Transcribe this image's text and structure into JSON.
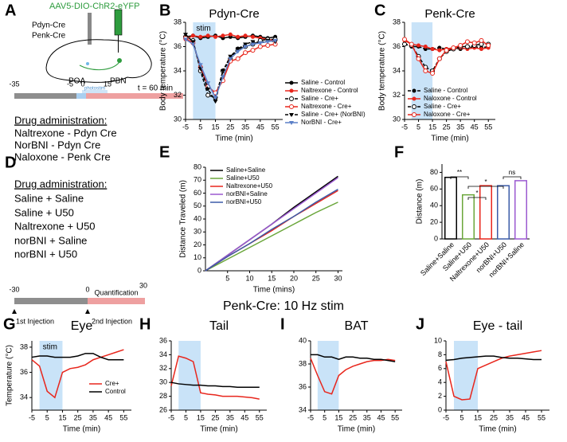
{
  "figure": {
    "panels": [
      "A",
      "B",
      "C",
      "D",
      "E",
      "F",
      "G",
      "H",
      "I",
      "J"
    ],
    "section_title": "Penk-Cre: 10 Hz stim",
    "diagram_a": {
      "virus": "AAV5-DIO-ChR2-eYFP",
      "lines": [
        "Pdyn-Cre",
        "Penk-Cre"
      ],
      "regions": [
        "POA",
        "PBN"
      ],
      "timeline": [
        "-35",
        "-5",
        "0",
        "15",
        "t = 60 min"
      ],
      "photostim": "photostim",
      "drug_title": "Drug administration:",
      "drugs": [
        "Naltrexone - Pdyn Cre",
        "NorBNI - Pdyn Cre",
        "Naloxone - Penk Cre"
      ]
    },
    "diagram_d": {
      "drug_title": "Drug administration:",
      "drugs": [
        "Saline + Saline",
        "Saline + U50",
        "Naltrexone + U50",
        "norBNI + Saline",
        "norBNI + U50"
      ],
      "timeline": [
        "-30",
        "0",
        "30"
      ],
      "phase": "Quantification",
      "injections": [
        "1st Injection",
        "2nd Injection"
      ]
    }
  },
  "chart_data": [
    {
      "type": "line",
      "title": "Pdyn-Cre",
      "x_label": "Time (min)",
      "y_label": "Body temperature (°C)",
      "x": [
        -5,
        0,
        5,
        10,
        15,
        20,
        25,
        30,
        35,
        40,
        45,
        50,
        55
      ],
      "xlim": [
        -5,
        60
      ],
      "xticks": [
        -5,
        5,
        15,
        25,
        35,
        45,
        55
      ],
      "ylim": [
        30,
        38
      ],
      "yticks": [
        30,
        32,
        34,
        36,
        38
      ],
      "shaded_region": [
        0,
        15
      ],
      "shaded_label": "stim",
      "legend": "lower right",
      "series": [
        {
          "name": "Saline - Control",
          "color": "#000000",
          "marker": "filled",
          "dashed": false,
          "values": [
            36.8,
            36.9,
            36.7,
            36.8,
            36.9,
            36.7,
            36.8,
            36.7,
            36.8,
            36.9,
            36.8,
            36.7,
            36.8
          ]
        },
        {
          "name": "Naltrexone - Control",
          "color": "#e8261c",
          "marker": "filled",
          "dashed": false,
          "values": [
            36.6,
            36.9,
            36.8,
            36.9,
            36.8,
            36.9,
            37,
            36.8,
            36.9,
            36.8,
            36.7,
            36.6,
            36.5
          ]
        },
        {
          "name": "Saline - Cre+",
          "color": "#000000",
          "marker": "open",
          "dashed": true,
          "values": [
            36.8,
            36.5,
            34,
            32,
            31.8,
            34,
            35,
            35.8,
            36,
            36.2,
            36.5,
            36.6,
            36.6
          ]
        },
        {
          "name": "Naltrexone - Cre+",
          "color": "#e8261c",
          "marker": "open",
          "dashed": false,
          "values": [
            36.7,
            36.3,
            34.3,
            32.7,
            32.2,
            33.2,
            34.8,
            35,
            35.5,
            35.7,
            36,
            36.1,
            36.2
          ]
        },
        {
          "name": "Saline - Cre+ (NorBNI)",
          "color": "#000000",
          "marker": "triangle",
          "dashed": true,
          "values": [
            37,
            36.4,
            34.2,
            32.5,
            31.5,
            34,
            35.2,
            35.8,
            36.2,
            36.4,
            36.3,
            36.5,
            36.4
          ]
        },
        {
          "name": "NorBNI - Cre+",
          "color": "#5b7fc7",
          "marker": "triangle",
          "dashed": false,
          "values": [
            36.6,
            36.2,
            34.5,
            33,
            31.8,
            33.5,
            35,
            35.6,
            36,
            36.2,
            36.3,
            36.4,
            36.5
          ]
        }
      ]
    },
    {
      "type": "line",
      "title": "Penk-Cre",
      "x_label": "Time (min)",
      "y_label": "Body temperature (°C)",
      "x": [
        -5,
        0,
        5,
        10,
        15,
        20,
        25,
        30,
        35,
        40,
        45,
        50,
        55
      ],
      "xlim": [
        -5,
        60
      ],
      "xticks": [
        -5,
        5,
        15,
        25,
        35,
        45,
        55
      ],
      "ylim": [
        30,
        38
      ],
      "yticks": [
        30,
        32,
        34,
        36,
        38
      ],
      "shaded_region": [
        0,
        15
      ],
      "legend": "lower right",
      "series": [
        {
          "name": "Saline - Control",
          "color": "#000000",
          "marker": "filled",
          "dashed": true,
          "values": [
            36.2,
            36,
            36,
            35.8,
            35.8,
            35.9,
            35.8,
            35.9,
            35.8,
            35.9,
            36,
            35.9,
            36
          ]
        },
        {
          "name": "Naloxone - Control",
          "color": "#e8261c",
          "marker": "filled",
          "dashed": false,
          "values": [
            36.5,
            36.2,
            36.1,
            36,
            35.8,
            35.7,
            35.8,
            35.9,
            35.9,
            35.8,
            35.9,
            35.8,
            35.9
          ]
        },
        {
          "name": "Saline - Cre+",
          "color": "#000000",
          "marker": "open",
          "dashed": true,
          "values": [
            36.2,
            36.1,
            35.2,
            34.3,
            34,
            35,
            35.6,
            35.8,
            36,
            36,
            36.1,
            36.2,
            36.2
          ]
        },
        {
          "name": "Naloxone - Cre+",
          "color": "#e8261c",
          "marker": "open",
          "dashed": false,
          "values": [
            36.6,
            36.2,
            35,
            34,
            33.8,
            35,
            35.7,
            35.9,
            36.1,
            36.4,
            36.3,
            36.5,
            36.1
          ]
        }
      ]
    },
    {
      "type": "line",
      "x_label": "Time (mins)",
      "y_label": "Distance Traveled (m)",
      "x": [
        0,
        5,
        10,
        15,
        20,
        25,
        30
      ],
      "xlim": [
        0,
        31
      ],
      "xticks": [
        5,
        10,
        15,
        20,
        25,
        30
      ],
      "ylim": [
        0,
        80
      ],
      "yticks": [
        0,
        10,
        20,
        30,
        40,
        50,
        60,
        70,
        80
      ],
      "legend": "upper left",
      "series": [
        {
          "name": "Saline+Saline",
          "color": "#000000",
          "marker": "none",
          "values": [
            0,
            12,
            24,
            36,
            49,
            61,
            73
          ]
        },
        {
          "name": "Saline+U50",
          "color": "#6aa63a",
          "marker": "none",
          "values": [
            0,
            9,
            18,
            27,
            36,
            45,
            53
          ]
        },
        {
          "name": "Naltrexone+U50",
          "color": "#e8261c",
          "marker": "none",
          "values": [
            0,
            11,
            21,
            31,
            42,
            52,
            62
          ]
        },
        {
          "name": "norBNI+Saline",
          "color": "#9b59d0",
          "marker": "none",
          "values": [
            0,
            12,
            24,
            36,
            48,
            60,
            72
          ]
        },
        {
          "name": "norBNI+U50",
          "color": "#3b5ba8",
          "marker": "none",
          "values": [
            0,
            11,
            21,
            32,
            42,
            53,
            63
          ]
        }
      ]
    },
    {
      "type": "bar",
      "y_label": "Distance (m)",
      "categories": [
        "Saline+Saline",
        "Saline+U50",
        "Naltrexone+U50",
        "norBNI+U50",
        "norBNI+Saline"
      ],
      "values": [
        74,
        53,
        64,
        64,
        70
      ],
      "colors": [
        "#000000",
        "#6aa63a",
        "#e8261c",
        "#3b5ba8",
        "#9b59d0"
      ],
      "ylim": [
        0,
        90
      ],
      "yticks": [
        0,
        20,
        40,
        60,
        80
      ],
      "annotations": [
        "**",
        "*",
        "*",
        "ns"
      ]
    },
    {
      "type": "line",
      "title": "Eye",
      "x_label": "Time (min)",
      "y_label": "Temperature (°C)",
      "x": [
        -5,
        0,
        5,
        10,
        15,
        20,
        25,
        30,
        35,
        40,
        45,
        50,
        55
      ],
      "xlim": [
        -5,
        60
      ],
      "xticks": [
        -5,
        5,
        15,
        25,
        35,
        45,
        55
      ],
      "ylim": [
        33,
        38.5
      ],
      "yticks": [
        34,
        36,
        38
      ],
      "shaded_region": [
        0,
        15
      ],
      "shaded_label": "stim",
      "legend": "lower right",
      "series": [
        {
          "name": "Cre+",
          "color": "#e8261c",
          "marker": "none",
          "values": [
            37,
            36.5,
            34.5,
            34,
            36,
            36.3,
            36.4,
            36.6,
            37,
            37.2,
            37.4,
            37.6,
            37.8
          ]
        },
        {
          "name": "Control",
          "color": "#000000",
          "marker": "none",
          "values": [
            37.2,
            37.3,
            37.3,
            37.2,
            37.2,
            37.2,
            37.3,
            37.5,
            37.5,
            37.2,
            37,
            37,
            37
          ]
        }
      ]
    },
    {
      "type": "line",
      "title": "Tail",
      "x_label": "Time (min)",
      "x": [
        -5,
        0,
        5,
        10,
        15,
        20,
        25,
        30,
        35,
        40,
        45,
        50,
        55
      ],
      "xlim": [
        -5,
        60
      ],
      "xticks": [
        -5,
        5,
        15,
        25,
        35,
        45,
        55
      ],
      "ylim": [
        26,
        36
      ],
      "yticks": [
        26,
        28,
        30,
        32,
        34,
        36
      ],
      "shaded_region": [
        0,
        15
      ],
      "series": [
        {
          "color": "#e8261c",
          "marker": "none",
          "values": [
            29.5,
            33.8,
            33.5,
            33,
            28.5,
            28.3,
            28.2,
            28,
            28,
            28,
            27.9,
            27.8,
            27.6
          ]
        },
        {
          "color": "#000000",
          "marker": "none",
          "values": [
            30,
            29.8,
            29.7,
            29.6,
            29.6,
            29.5,
            29.5,
            29.4,
            29.4,
            29.3,
            29.3,
            29.3,
            29.3
          ]
        }
      ]
    },
    {
      "type": "line",
      "title": "BAT",
      "x_label": "Time (min)",
      "x": [
        -5,
        0,
        5,
        10,
        15,
        20,
        25,
        30,
        35,
        40,
        45,
        50,
        55
      ],
      "xlim": [
        -5,
        60
      ],
      "xticks": [
        -5,
        5,
        15,
        25,
        35,
        45,
        55
      ],
      "ylim": [
        34,
        40
      ],
      "yticks": [
        34,
        36,
        38,
        40
      ],
      "shaded_region": [
        0,
        15
      ],
      "series": [
        {
          "color": "#e8261c",
          "marker": "none",
          "values": [
            38.5,
            37,
            35.6,
            35.4,
            37,
            37.5,
            37.8,
            38,
            38.2,
            38.3,
            38.3,
            38.4,
            38.3
          ]
        },
        {
          "color": "#000000",
          "marker": "none",
          "values": [
            38.8,
            38.8,
            38.6,
            38.6,
            38.4,
            38.6,
            38.6,
            38.5,
            38.5,
            38.4,
            38.4,
            38.3,
            38.2
          ]
        }
      ]
    },
    {
      "type": "line",
      "title": "Eye - tail",
      "x_label": "Time (min)",
      "x": [
        -5,
        0,
        5,
        10,
        15,
        20,
        25,
        30,
        35,
        40,
        45,
        50,
        55
      ],
      "xlim": [
        -5,
        60
      ],
      "xticks": [
        -5,
        5,
        15,
        25,
        35,
        45,
        55
      ],
      "ylim": [
        0,
        10
      ],
      "yticks": [
        0,
        2,
        4,
        6,
        8,
        10
      ],
      "shaded_region": [
        0,
        15
      ],
      "series": [
        {
          "color": "#e8261c",
          "marker": "none",
          "values": [
            7,
            2,
            1.5,
            1.6,
            6,
            6.5,
            7,
            7.5,
            7.8,
            8,
            8.2,
            8.4,
            8.6
          ]
        },
        {
          "color": "#000000",
          "marker": "none",
          "values": [
            7.2,
            7.3,
            7.5,
            7.6,
            7.7,
            7.8,
            7.8,
            7.6,
            7.5,
            7.5,
            7.4,
            7.3,
            7.3
          ]
        }
      ]
    }
  ]
}
